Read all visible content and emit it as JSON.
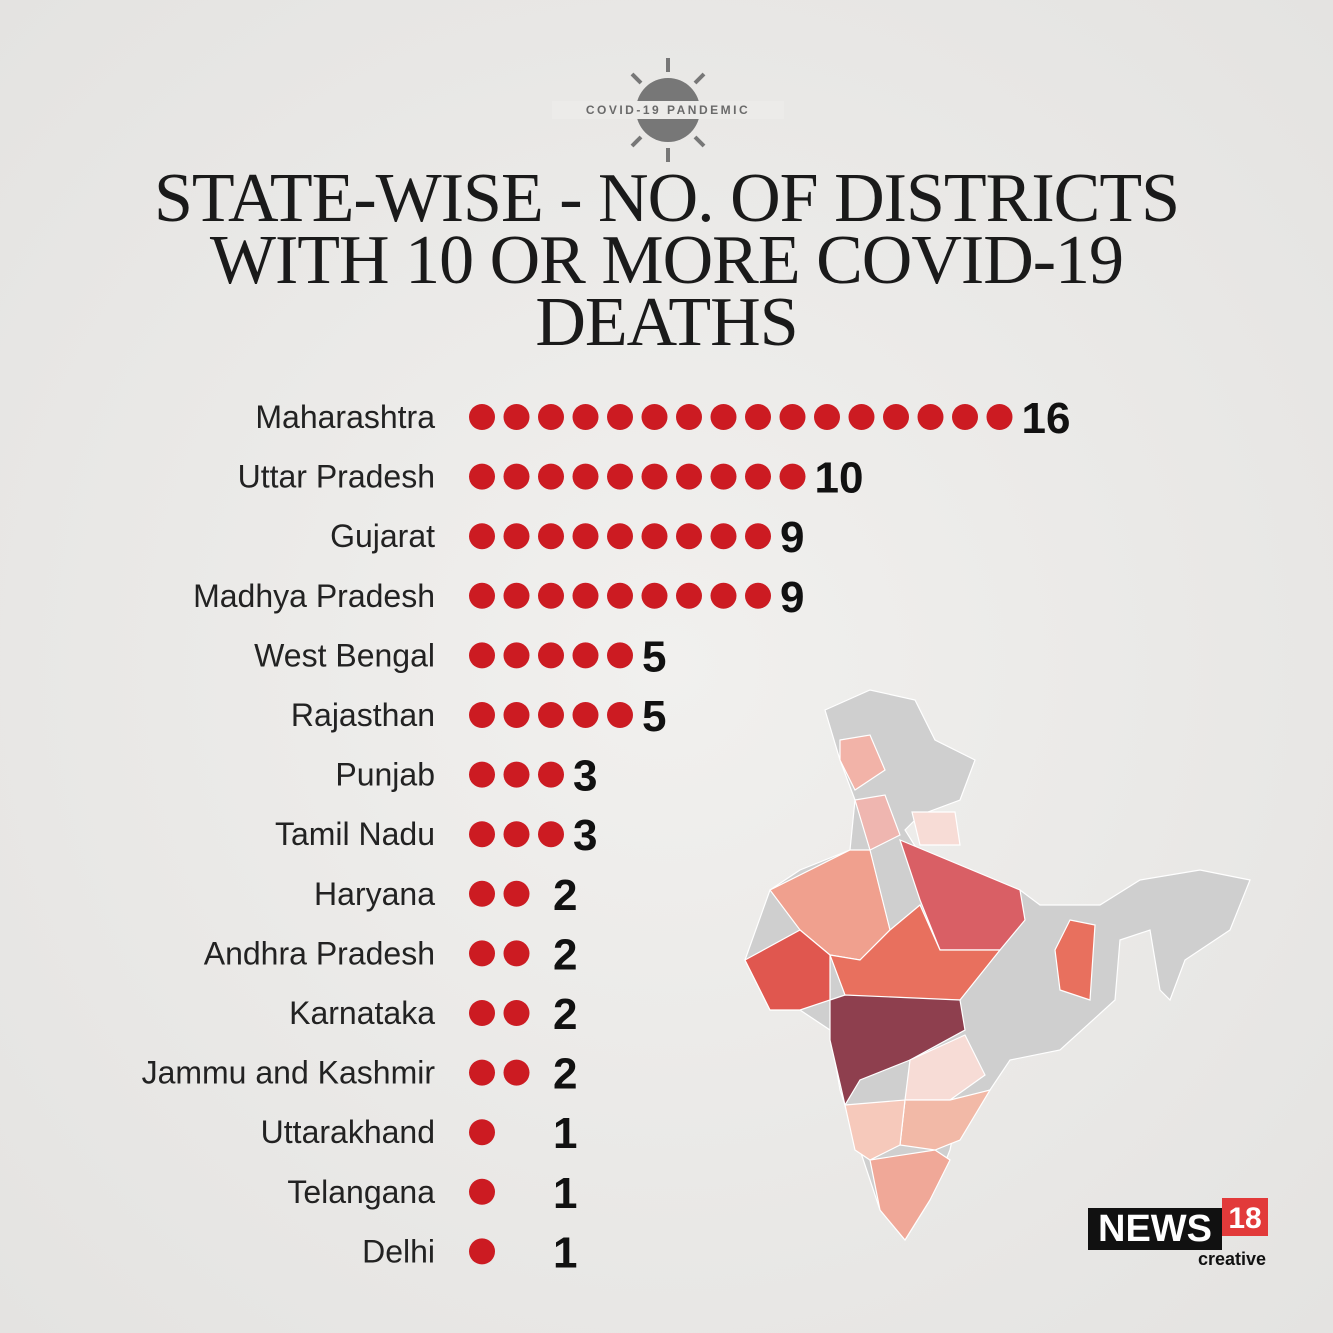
{
  "badge": "COVID-19 PANDEMIC",
  "brand": {
    "name": "NEWS",
    "number": "18",
    "tagline": "creative"
  },
  "chart_data": {
    "type": "dot",
    "title": "STATE-WISE - NO. OF DISTRICTS WITH 10 OR MORE COVID-19 DEATHS",
    "categories": [
      "Maharashtra",
      "Uttar Pradesh",
      "Gujarat",
      "Madhya Pradesh",
      "West Bengal",
      "Rajasthan",
      "Punjab",
      "Tamil Nadu",
      "Haryana",
      "Andhra Pradesh",
      "Karnataka",
      "Jammu and Kashmir",
      "Uttarakhand",
      "Telangana",
      "Delhi"
    ],
    "values": [
      16,
      10,
      9,
      9,
      5,
      5,
      3,
      3,
      2,
      2,
      2,
      2,
      1,
      1,
      1
    ],
    "color": "#cc1b22"
  }
}
